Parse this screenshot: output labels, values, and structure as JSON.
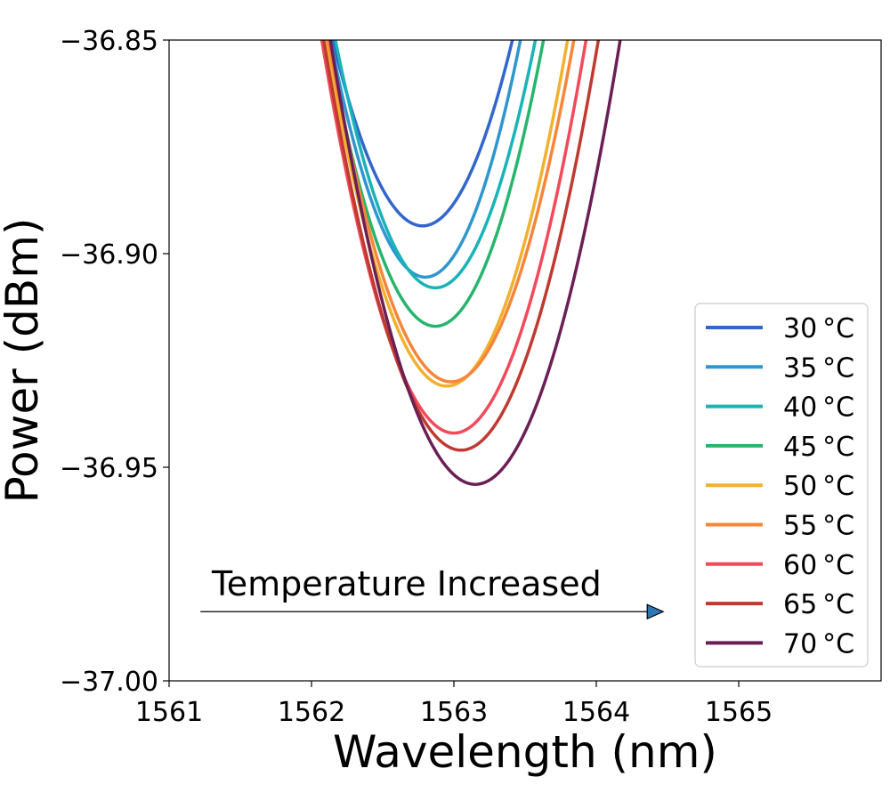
{
  "chart_data": {
    "type": "line",
    "title": "",
    "xlabel": "Wavelength (nm)",
    "ylabel": "Power (dBm)",
    "xlim": [
      1561,
      1566
    ],
    "ylim": [
      -37.0,
      -36.85
    ],
    "xticks": [
      1561,
      1562,
      1563,
      1564,
      1565
    ],
    "xtick_labels": [
      "1561",
      "1562",
      "1563",
      "1564",
      "1565"
    ],
    "yticks": [
      -37.0,
      -36.95,
      -36.9,
      -36.85
    ],
    "ytick_labels": [
      "−37.00",
      "−36.95",
      "−36.90",
      "−36.85"
    ],
    "grid": false,
    "legend_position": "lower-right",
    "annotation": {
      "text": "Temperature Increased",
      "arrow_from": [
        1561.22,
        -36.9838
      ],
      "arrow_to": [
        1564.47,
        -36.9838
      ]
    },
    "series": [
      {
        "name": "30 °C",
        "color": "#3366cc",
        "x_min": 1562.78,
        "y_min": -36.8935,
        "curvature": 0.1093
      },
      {
        "name": "35 °C",
        "color": "#2f96d0",
        "x_min": 1562.8,
        "y_min": -36.9055,
        "curvature": 0.1247
      },
      {
        "name": "40 °C",
        "color": "#19b3b8",
        "x_min": 1562.87,
        "y_min": -36.908,
        "curvature": 0.1176
      },
      {
        "name": "45 °C",
        "color": "#27b56d",
        "x_min": 1562.87,
        "y_min": -36.917,
        "curvature": 0.1163
      },
      {
        "name": "50 °C",
        "color": "#f2b02f",
        "x_min": 1562.95,
        "y_min": -36.931,
        "curvature": 0.1126
      },
      {
        "name": "55 °C",
        "color": "#f5863a",
        "x_min": 1562.98,
        "y_min": -36.93,
        "curvature": 0.1076
      },
      {
        "name": "60 °C",
        "color": "#f24a5a",
        "x_min": 1563.0,
        "y_min": -36.942,
        "curvature": 0.1069
      },
      {
        "name": "65 °C",
        "color": "#bf3a30",
        "x_min": 1563.05,
        "y_min": -36.946,
        "curvature": 0.1032
      },
      {
        "name": "70 °C",
        "color": "#6b1f55",
        "x_min": 1563.15,
        "y_min": -36.954,
        "curvature": 0.1004
      }
    ]
  }
}
